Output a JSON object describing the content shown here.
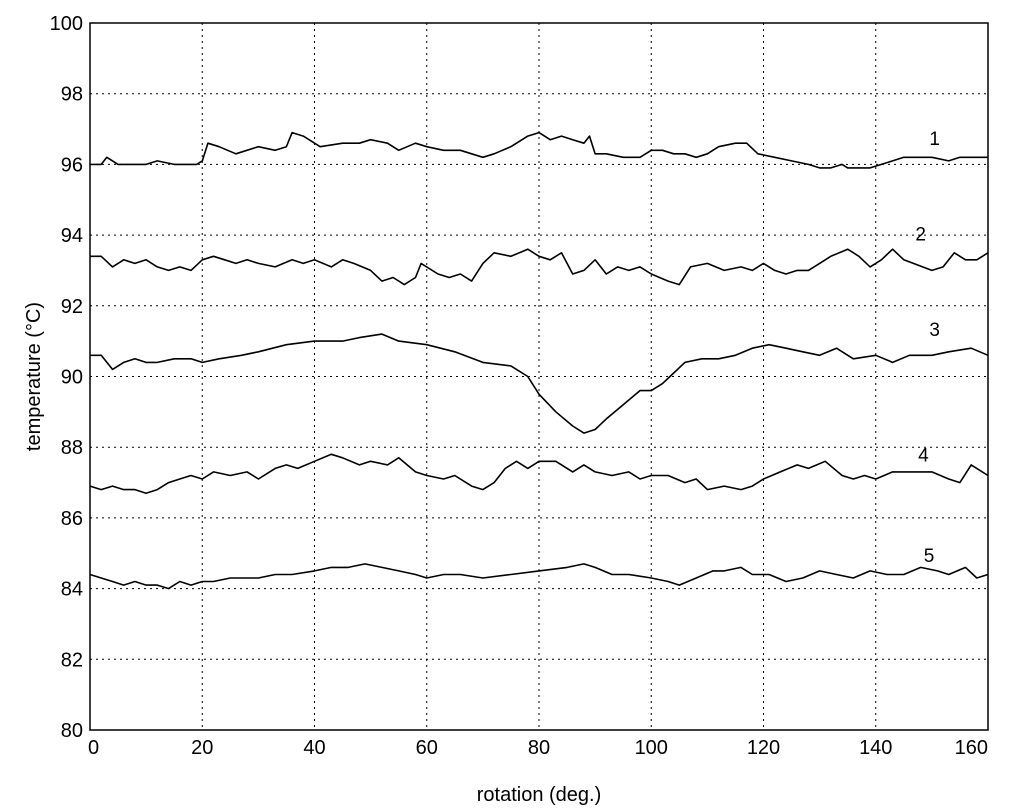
{
  "chart_data": {
    "type": "line",
    "title": "",
    "xlabel": "rotation (deg.)",
    "ylabel": "temperature (°C)",
    "xlim": [
      0,
      160
    ],
    "ylim": [
      80,
      100
    ],
    "xticks": [
      0,
      20,
      40,
      60,
      80,
      100,
      120,
      140,
      160
    ],
    "yticks": [
      80,
      82,
      84,
      86,
      88,
      90,
      92,
      94,
      96,
      98,
      100
    ],
    "grid": true,
    "series": [
      {
        "name": "1",
        "points": [
          [
            0,
            96.0
          ],
          [
            2,
            96.0
          ],
          [
            3,
            96.2
          ],
          [
            5,
            96.0
          ],
          [
            10,
            96.0
          ],
          [
            12,
            96.1
          ],
          [
            15,
            96.0
          ],
          [
            19,
            96.0
          ],
          [
            20,
            96.1
          ],
          [
            21,
            96.6
          ],
          [
            23,
            96.5
          ],
          [
            26,
            96.3
          ],
          [
            30,
            96.5
          ],
          [
            33,
            96.4
          ],
          [
            35,
            96.5
          ],
          [
            36,
            96.9
          ],
          [
            38,
            96.8
          ],
          [
            41,
            96.5
          ],
          [
            45,
            96.6
          ],
          [
            48,
            96.6
          ],
          [
            50,
            96.7
          ],
          [
            53,
            96.6
          ],
          [
            55,
            96.4
          ],
          [
            58,
            96.6
          ],
          [
            60,
            96.5
          ],
          [
            63,
            96.4
          ],
          [
            66,
            96.4
          ],
          [
            68,
            96.3
          ],
          [
            70,
            96.2
          ],
          [
            72,
            96.3
          ],
          [
            75,
            96.5
          ],
          [
            78,
            96.8
          ],
          [
            80,
            96.9
          ],
          [
            82,
            96.7
          ],
          [
            84,
            96.8
          ],
          [
            86,
            96.7
          ],
          [
            88,
            96.6
          ],
          [
            89,
            96.8
          ],
          [
            90,
            96.3
          ],
          [
            92,
            96.3
          ],
          [
            95,
            96.2
          ],
          [
            98,
            96.2
          ],
          [
            100,
            96.4
          ],
          [
            102,
            96.4
          ],
          [
            104,
            96.3
          ],
          [
            106,
            96.3
          ],
          [
            108,
            96.2
          ],
          [
            110,
            96.3
          ],
          [
            112,
            96.5
          ],
          [
            115,
            96.6
          ],
          [
            117,
            96.6
          ],
          [
            119,
            96.3
          ],
          [
            122,
            96.2
          ],
          [
            125,
            96.1
          ],
          [
            128,
            96.0
          ],
          [
            130,
            95.9
          ],
          [
            132,
            95.9
          ],
          [
            134,
            96.0
          ],
          [
            135,
            95.9
          ],
          [
            137,
            95.9
          ],
          [
            139,
            95.9
          ],
          [
            141,
            96.0
          ],
          [
            143,
            96.1
          ],
          [
            145,
            96.2
          ],
          [
            150,
            96.2
          ],
          [
            153,
            96.1
          ],
          [
            155,
            96.2
          ],
          [
            160,
            96.2
          ]
        ]
      },
      {
        "name": "2",
        "points": [
          [
            0,
            93.4
          ],
          [
            2,
            93.4
          ],
          [
            4,
            93.1
          ],
          [
            6,
            93.3
          ],
          [
            8,
            93.2
          ],
          [
            10,
            93.3
          ],
          [
            12,
            93.1
          ],
          [
            14,
            93.0
          ],
          [
            16,
            93.1
          ],
          [
            18,
            93.0
          ],
          [
            20,
            93.3
          ],
          [
            22,
            93.4
          ],
          [
            24,
            93.3
          ],
          [
            26,
            93.2
          ],
          [
            28,
            93.3
          ],
          [
            30,
            93.2
          ],
          [
            33,
            93.1
          ],
          [
            36,
            93.3
          ],
          [
            38,
            93.2
          ],
          [
            40,
            93.3
          ],
          [
            43,
            93.1
          ],
          [
            45,
            93.3
          ],
          [
            47,
            93.2
          ],
          [
            50,
            93.0
          ],
          [
            52,
            92.7
          ],
          [
            54,
            92.8
          ],
          [
            56,
            92.6
          ],
          [
            58,
            92.8
          ],
          [
            59,
            93.2
          ],
          [
            62,
            92.9
          ],
          [
            64,
            92.8
          ],
          [
            66,
            92.9
          ],
          [
            68,
            92.7
          ],
          [
            70,
            93.2
          ],
          [
            72,
            93.5
          ],
          [
            75,
            93.4
          ],
          [
            78,
            93.6
          ],
          [
            80,
            93.4
          ],
          [
            82,
            93.3
          ],
          [
            84,
            93.5
          ],
          [
            86,
            92.9
          ],
          [
            88,
            93.0
          ],
          [
            90,
            93.3
          ],
          [
            92,
            92.9
          ],
          [
            94,
            93.1
          ],
          [
            96,
            93.0
          ],
          [
            98,
            93.1
          ],
          [
            100,
            92.9
          ],
          [
            103,
            92.7
          ],
          [
            105,
            92.6
          ],
          [
            107,
            93.1
          ],
          [
            110,
            93.2
          ],
          [
            113,
            93.0
          ],
          [
            116,
            93.1
          ],
          [
            118,
            93.0
          ],
          [
            120,
            93.2
          ],
          [
            122,
            93.0
          ],
          [
            124,
            92.9
          ],
          [
            126,
            93.0
          ],
          [
            128,
            93.0
          ],
          [
            130,
            93.2
          ],
          [
            132,
            93.4
          ],
          [
            135,
            93.6
          ],
          [
            137,
            93.4
          ],
          [
            139,
            93.1
          ],
          [
            141,
            93.3
          ],
          [
            143,
            93.6
          ],
          [
            145,
            93.3
          ],
          [
            150,
            93.0
          ],
          [
            152,
            93.1
          ],
          [
            154,
            93.5
          ],
          [
            156,
            93.3
          ],
          [
            158,
            93.3
          ],
          [
            160,
            93.5
          ]
        ]
      },
      {
        "name": "3",
        "points": [
          [
            0,
            90.6
          ],
          [
            2,
            90.6
          ],
          [
            4,
            90.2
          ],
          [
            6,
            90.4
          ],
          [
            8,
            90.5
          ],
          [
            10,
            90.4
          ],
          [
            12,
            90.4
          ],
          [
            15,
            90.5
          ],
          [
            18,
            90.5
          ],
          [
            20,
            90.4
          ],
          [
            23,
            90.5
          ],
          [
            27,
            90.6
          ],
          [
            30,
            90.7
          ],
          [
            35,
            90.9
          ],
          [
            40,
            91.0
          ],
          [
            45,
            91.0
          ],
          [
            48,
            91.1
          ],
          [
            52,
            91.2
          ],
          [
            55,
            91.0
          ],
          [
            60,
            90.9
          ],
          [
            65,
            90.7
          ],
          [
            70,
            90.4
          ],
          [
            75,
            90.3
          ],
          [
            78,
            90.0
          ],
          [
            80,
            89.5
          ],
          [
            83,
            89.0
          ],
          [
            86,
            88.6
          ],
          [
            88,
            88.4
          ],
          [
            90,
            88.5
          ],
          [
            92,
            88.8
          ],
          [
            95,
            89.2
          ],
          [
            98,
            89.6
          ],
          [
            100,
            89.6
          ],
          [
            102,
            89.8
          ],
          [
            104,
            90.1
          ],
          [
            106,
            90.4
          ],
          [
            109,
            90.5
          ],
          [
            112,
            90.5
          ],
          [
            115,
            90.6
          ],
          [
            118,
            90.8
          ],
          [
            121,
            90.9
          ],
          [
            124,
            90.8
          ],
          [
            127,
            90.7
          ],
          [
            130,
            90.6
          ],
          [
            133,
            90.8
          ],
          [
            136,
            90.5
          ],
          [
            140,
            90.6
          ],
          [
            143,
            90.4
          ],
          [
            146,
            90.6
          ],
          [
            150,
            90.6
          ],
          [
            153,
            90.7
          ],
          [
            157,
            90.8
          ],
          [
            160,
            90.6
          ]
        ]
      },
      {
        "name": "4",
        "points": [
          [
            0,
            86.9
          ],
          [
            2,
            86.8
          ],
          [
            4,
            86.9
          ],
          [
            6,
            86.8
          ],
          [
            8,
            86.8
          ],
          [
            10,
            86.7
          ],
          [
            12,
            86.8
          ],
          [
            14,
            87.0
          ],
          [
            16,
            87.1
          ],
          [
            18,
            87.2
          ],
          [
            20,
            87.1
          ],
          [
            22,
            87.3
          ],
          [
            25,
            87.2
          ],
          [
            28,
            87.3
          ],
          [
            30,
            87.1
          ],
          [
            33,
            87.4
          ],
          [
            35,
            87.5
          ],
          [
            37,
            87.4
          ],
          [
            40,
            87.6
          ],
          [
            43,
            87.8
          ],
          [
            45,
            87.7
          ],
          [
            48,
            87.5
          ],
          [
            50,
            87.6
          ],
          [
            53,
            87.5
          ],
          [
            55,
            87.7
          ],
          [
            58,
            87.3
          ],
          [
            60,
            87.2
          ],
          [
            63,
            87.1
          ],
          [
            65,
            87.2
          ],
          [
            68,
            86.9
          ],
          [
            70,
            86.8
          ],
          [
            72,
            87.0
          ],
          [
            74,
            87.4
          ],
          [
            76,
            87.6
          ],
          [
            78,
            87.4
          ],
          [
            80,
            87.6
          ],
          [
            83,
            87.6
          ],
          [
            86,
            87.3
          ],
          [
            88,
            87.5
          ],
          [
            90,
            87.3
          ],
          [
            93,
            87.2
          ],
          [
            96,
            87.3
          ],
          [
            98,
            87.1
          ],
          [
            100,
            87.2
          ],
          [
            103,
            87.2
          ],
          [
            106,
            87.0
          ],
          [
            108,
            87.1
          ],
          [
            110,
            86.8
          ],
          [
            113,
            86.9
          ],
          [
            116,
            86.8
          ],
          [
            118,
            86.9
          ],
          [
            120,
            87.1
          ],
          [
            123,
            87.3
          ],
          [
            126,
            87.5
          ],
          [
            128,
            87.4
          ],
          [
            131,
            87.6
          ],
          [
            134,
            87.2
          ],
          [
            136,
            87.1
          ],
          [
            138,
            87.2
          ],
          [
            140,
            87.1
          ],
          [
            143,
            87.3
          ],
          [
            146,
            87.3
          ],
          [
            150,
            87.3
          ],
          [
            153,
            87.1
          ],
          [
            155,
            87.0
          ],
          [
            157,
            87.5
          ],
          [
            160,
            87.2
          ]
        ]
      },
      {
        "name": "5",
        "points": [
          [
            0,
            84.4
          ],
          [
            2,
            84.3
          ],
          [
            4,
            84.2
          ],
          [
            6,
            84.1
          ],
          [
            8,
            84.2
          ],
          [
            10,
            84.1
          ],
          [
            12,
            84.1
          ],
          [
            14,
            84.0
          ],
          [
            16,
            84.2
          ],
          [
            18,
            84.1
          ],
          [
            20,
            84.2
          ],
          [
            22,
            84.2
          ],
          [
            25,
            84.3
          ],
          [
            28,
            84.3
          ],
          [
            30,
            84.3
          ],
          [
            33,
            84.4
          ],
          [
            36,
            84.4
          ],
          [
            40,
            84.5
          ],
          [
            43,
            84.6
          ],
          [
            46,
            84.6
          ],
          [
            49,
            84.7
          ],
          [
            52,
            84.6
          ],
          [
            55,
            84.5
          ],
          [
            58,
            84.4
          ],
          [
            60,
            84.3
          ],
          [
            63,
            84.4
          ],
          [
            66,
            84.4
          ],
          [
            70,
            84.3
          ],
          [
            75,
            84.4
          ],
          [
            80,
            84.5
          ],
          [
            85,
            84.6
          ],
          [
            88,
            84.7
          ],
          [
            90,
            84.6
          ],
          [
            93,
            84.4
          ],
          [
            96,
            84.4
          ],
          [
            100,
            84.3
          ],
          [
            103,
            84.2
          ],
          [
            105,
            84.1
          ],
          [
            108,
            84.3
          ],
          [
            111,
            84.5
          ],
          [
            113,
            84.5
          ],
          [
            116,
            84.6
          ],
          [
            118,
            84.4
          ],
          [
            121,
            84.4
          ],
          [
            124,
            84.2
          ],
          [
            127,
            84.3
          ],
          [
            130,
            84.5
          ],
          [
            133,
            84.4
          ],
          [
            136,
            84.3
          ],
          [
            139,
            84.5
          ],
          [
            142,
            84.4
          ],
          [
            145,
            84.4
          ],
          [
            148,
            84.6
          ],
          [
            151,
            84.5
          ],
          [
            153,
            84.4
          ],
          [
            156,
            84.6
          ],
          [
            158,
            84.3
          ],
          [
            160,
            84.4
          ]
        ]
      }
    ],
    "series_label_positions": [
      {
        "name": "1",
        "x": 150.5,
        "y": 96.55
      },
      {
        "name": "2",
        "x": 148.0,
        "y": 93.85
      },
      {
        "name": "3",
        "x": 150.5,
        "y": 91.15
      },
      {
        "name": "4",
        "x": 148.5,
        "y": 87.6
      },
      {
        "name": "5",
        "x": 149.5,
        "y": 84.75
      }
    ]
  }
}
